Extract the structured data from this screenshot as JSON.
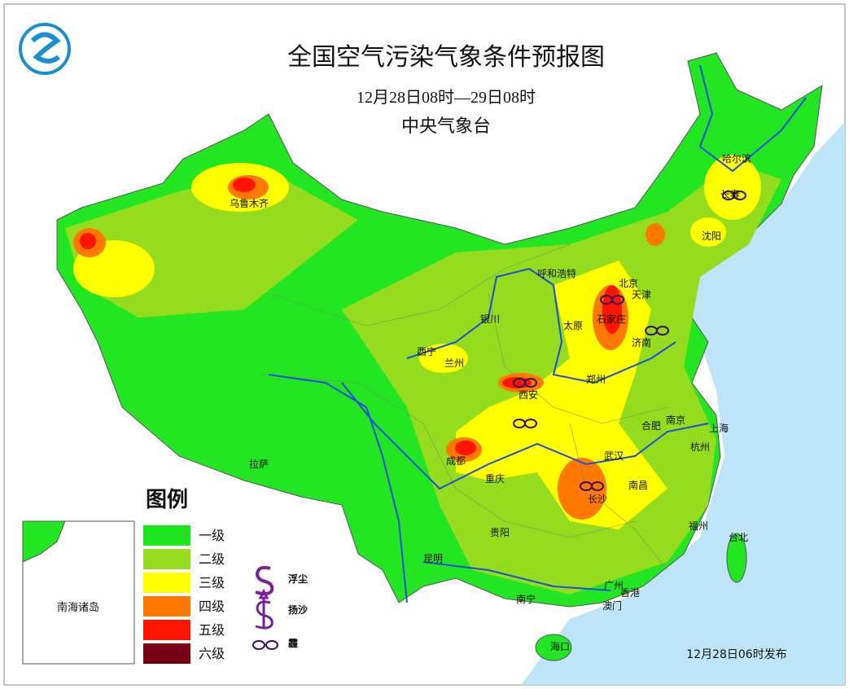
{
  "header": {
    "title": "全国空气污染气象条件预报图",
    "period": "12月28日08时—29日08时",
    "issuer": "中央气象台"
  },
  "legend": {
    "title": "图例",
    "items": [
      {
        "label": "一级",
        "color": "#1ee61e"
      },
      {
        "label": "二级",
        "color": "#96dc1e"
      },
      {
        "label": "三级",
        "color": "#ffff00"
      },
      {
        "label": "四级",
        "color": "#ff7800"
      },
      {
        "label": "五级",
        "color": "#ff1400"
      },
      {
        "label": "六级",
        "color": "#780014"
      }
    ],
    "symbols": [
      {
        "label": "浮尘"
      },
      {
        "label": "扬沙"
      },
      {
        "label": "霾"
      }
    ]
  },
  "inset": {
    "label": "南海诸岛"
  },
  "footer": "12月28日06时发布",
  "cities": [
    "乌鲁木齐",
    "哈尔滨",
    "长春",
    "沈阳",
    "呼和浩特",
    "北京",
    "天津",
    "银川",
    "太原",
    "石家庄",
    "济南",
    "西宁",
    "兰州",
    "郑州",
    "西安",
    "合肥",
    "南京",
    "上海",
    "杭州",
    "成都",
    "武汉",
    "重庆",
    "长沙",
    "南昌",
    "拉萨",
    "贵阳",
    "福州",
    "台北",
    "昆明",
    "南宁",
    "广州",
    "香港",
    "澳门",
    "海口"
  ]
}
